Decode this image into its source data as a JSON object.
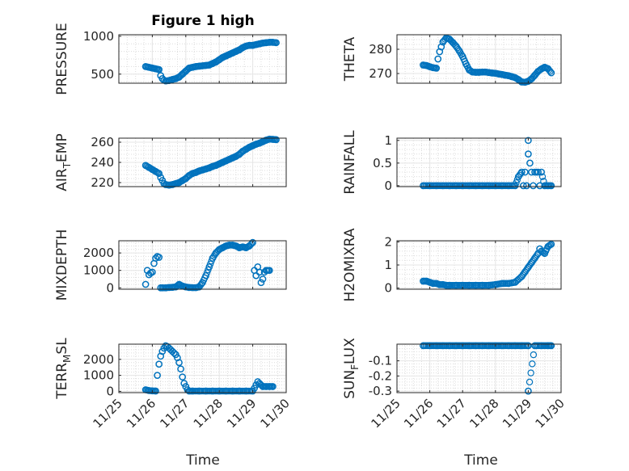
{
  "figure": {
    "title": "Figure 1 high"
  },
  "colors": {
    "marker": "#0072BD",
    "axis": "#262626",
    "grid": "#dcdcdc"
  },
  "x_axis": {
    "label": "Time",
    "ticks": [
      "11/25",
      "11/26",
      "11/27",
      "11/28",
      "11/29",
      "11/30"
    ],
    "range_days": [
      25,
      30
    ]
  },
  "chart_data": [
    {
      "type": "scatter",
      "ylabel": "PRESSURE",
      "ylim": [
        380,
        1020
      ],
      "yticks": [
        500,
        1000
      ],
      "x": [
        25.8,
        25.9,
        26.0,
        26.1,
        26.2,
        26.25,
        26.3,
        26.35,
        26.4,
        26.5,
        26.6,
        26.7,
        26.8,
        26.9,
        27.0,
        27.1,
        27.2,
        27.3,
        27.4,
        27.5,
        27.6,
        27.7,
        27.8,
        27.9,
        28.0,
        28.1,
        28.2,
        28.3,
        28.4,
        28.5,
        28.6,
        28.7,
        28.8,
        28.9,
        29.0,
        29.1,
        29.2,
        29.3,
        29.4,
        29.5,
        29.6,
        29.7
      ],
      "y": [
        600,
        590,
        580,
        570,
        560,
        480,
        440,
        420,
        410,
        415,
        430,
        440,
        460,
        500,
        540,
        580,
        590,
        600,
        605,
        610,
        615,
        620,
        640,
        660,
        690,
        720,
        740,
        760,
        780,
        800,
        820,
        850,
        870,
        880,
        880,
        890,
        900,
        910,
        915,
        920,
        920,
        915
      ]
    },
    {
      "type": "scatter",
      "ylabel": "THETA",
      "ylim": [
        266,
        286
      ],
      "yticks": [
        270,
        280
      ],
      "x": [
        25.8,
        25.9,
        26.0,
        26.1,
        26.2,
        26.25,
        26.3,
        26.35,
        26.4,
        26.5,
        26.6,
        26.7,
        26.8,
        26.9,
        27.0,
        27.1,
        27.2,
        27.3,
        27.4,
        27.5,
        27.6,
        27.7,
        27.8,
        27.9,
        28.0,
        28.1,
        28.2,
        28.3,
        28.4,
        28.5,
        28.6,
        28.7,
        28.8,
        28.9,
        29.0,
        29.1,
        29.2,
        29.3,
        29.4,
        29.5,
        29.6,
        29.7
      ],
      "y": [
        273.5,
        273.3,
        272.8,
        272.4,
        272.2,
        276,
        279,
        281,
        283,
        284.7,
        284.2,
        282.8,
        281.3,
        279.3,
        277,
        274,
        271.5,
        270.6,
        270.5,
        270.5,
        270.6,
        270.6,
        270.4,
        270.2,
        270.1,
        269.8,
        269.6,
        269.3,
        269.1,
        268.7,
        268.3,
        267.5,
        266.5,
        266.4,
        266.8,
        267.8,
        269.3,
        270.9,
        271.9,
        272.6,
        272,
        270.3
      ]
    },
    {
      "type": "scatter",
      "ylabel": "AIR_TEMP",
      "ylim": [
        216,
        264
      ],
      "yticks": [
        220,
        240,
        260
      ],
      "x": [
        25.8,
        25.9,
        26.0,
        26.1,
        26.2,
        26.25,
        26.3,
        26.35,
        26.4,
        26.5,
        26.6,
        26.7,
        26.8,
        26.9,
        27.0,
        27.1,
        27.2,
        27.3,
        27.4,
        27.5,
        27.6,
        27.7,
        27.8,
        27.9,
        28.0,
        28.1,
        28.2,
        28.3,
        28.4,
        28.5,
        28.6,
        28.7,
        28.8,
        28.9,
        29.0,
        29.1,
        29.2,
        29.3,
        29.4,
        29.5,
        29.6,
        29.7
      ],
      "y": [
        237,
        235,
        233,
        231,
        229,
        225,
        222,
        219,
        218,
        217.5,
        218,
        219,
        220,
        222,
        224,
        227,
        229,
        230,
        231.5,
        232.5,
        233.5,
        234.5,
        236,
        237,
        238.5,
        240,
        241.5,
        243,
        244.5,
        246,
        248,
        251,
        253,
        255,
        256.5,
        258,
        259,
        260.5,
        262,
        263,
        262.8,
        262.5
      ]
    },
    {
      "type": "scatter",
      "ylabel": "RAINFALL",
      "ylim": [
        -0.02,
        1.05
      ],
      "yticks": [
        0,
        0.5,
        1
      ],
      "x": [
        25.8,
        26.0,
        26.2,
        26.4,
        26.6,
        26.8,
        27.0,
        27.2,
        27.4,
        27.6,
        27.8,
        28.0,
        28.2,
        28.4,
        28.6,
        28.7,
        28.8,
        28.85,
        28.9,
        28.95,
        29.0,
        29.0,
        29.05,
        29.1,
        29.15,
        29.2,
        29.25,
        29.3,
        29.35,
        29.4,
        29.5,
        29.6,
        29.7
      ],
      "y": [
        0,
        0,
        0,
        0,
        0,
        0,
        0,
        0,
        0,
        0,
        0,
        0,
        0,
        0,
        0,
        0.2,
        0.3,
        0,
        0.3,
        0,
        1.0,
        0.7,
        0.5,
        0.3,
        0,
        0.3,
        0.3,
        0.3,
        0,
        0.3,
        0,
        0,
        0
      ]
    },
    {
      "type": "scatter",
      "ylabel": "MIXDEPTH",
      "ylim": [
        -80,
        2700
      ],
      "yticks": [
        0,
        1000,
        2000
      ],
      "x": [
        25.8,
        25.85,
        25.9,
        25.95,
        26.0,
        26.05,
        26.1,
        26.15,
        26.2,
        26.25,
        26.3,
        26.4,
        26.5,
        26.6,
        26.7,
        26.8,
        26.9,
        27.0,
        27.1,
        27.2,
        27.3,
        27.4,
        27.5,
        27.6,
        27.7,
        27.8,
        27.9,
        28.0,
        28.1,
        28.2,
        28.3,
        28.4,
        28.5,
        28.6,
        28.7,
        28.8,
        28.9,
        29.0,
        29.05,
        29.1,
        29.15,
        29.2,
        29.25,
        29.3,
        29.35,
        29.4,
        29.5
      ],
      "y": [
        200,
        1000,
        750,
        850,
        900,
        1400,
        1700,
        1800,
        1750,
        0,
        0,
        0,
        20,
        30,
        50,
        200,
        100,
        50,
        20,
        10,
        10,
        50,
        300,
        700,
        1200,
        1700,
        2000,
        2200,
        2300,
        2400,
        2450,
        2450,
        2400,
        2300,
        2350,
        2300,
        2400,
        2600,
        1000,
        700,
        1200,
        900,
        300,
        500,
        900,
        1000,
        1000
      ]
    },
    {
      "type": "scatter",
      "ylabel": "H2OMIXRA",
      "ylim": [
        -0.05,
        2.05
      ],
      "yticks": [
        0,
        1,
        2
      ],
      "x": [
        25.8,
        25.9,
        26.0,
        26.1,
        26.2,
        26.3,
        26.4,
        26.5,
        26.6,
        26.8,
        27.0,
        27.2,
        27.4,
        27.6,
        27.8,
        28.0,
        28.2,
        28.4,
        28.6,
        28.8,
        28.9,
        29.0,
        29.1,
        29.2,
        29.3,
        29.35,
        29.4,
        29.5,
        29.6,
        29.7
      ],
      "y": [
        0.3,
        0.3,
        0.25,
        0.2,
        0.2,
        0.15,
        0.15,
        0.12,
        0.12,
        0.12,
        0.12,
        0.12,
        0.12,
        0.12,
        0.12,
        0.15,
        0.2,
        0.2,
        0.25,
        0.5,
        0.7,
        0.9,
        1.1,
        1.3,
        1.5,
        1.7,
        1.6,
        1.5,
        1.8,
        1.9
      ]
    },
    {
      "type": "scatter",
      "ylabel": "TERR_MSL",
      "ylim": [
        -80,
        2950
      ],
      "yticks": [
        0,
        1000,
        2000
      ],
      "x": [
        25.8,
        25.9,
        26.0,
        26.1,
        26.15,
        26.2,
        26.25,
        26.3,
        26.35,
        26.4,
        26.45,
        26.5,
        26.55,
        26.6,
        26.65,
        26.7,
        26.75,
        26.8,
        26.85,
        26.9,
        26.95,
        27.0,
        27.05,
        27.1,
        27.2,
        27.4,
        27.6,
        27.8,
        28.0,
        28.2,
        28.4,
        28.6,
        28.8,
        29.0,
        29.05,
        29.1,
        29.15,
        29.2,
        29.3,
        29.4,
        29.5,
        29.6
      ],
      "y": [
        100,
        50,
        30,
        20,
        1000,
        1700,
        2200,
        2500,
        2700,
        2850,
        2800,
        2700,
        2600,
        2500,
        2400,
        2300,
        2100,
        1800,
        1400,
        900,
        500,
        300,
        100,
        20,
        20,
        20,
        20,
        20,
        20,
        20,
        20,
        20,
        20,
        20,
        200,
        400,
        600,
        500,
        300,
        300,
        300,
        300
      ]
    },
    {
      "type": "scatter",
      "ylabel": "SUN_FLUX",
      "ylim": [
        -0.31,
        0.01
      ],
      "yticks": [
        -0.1,
        -0.2,
        -0.3
      ],
      "x": [
        25.8,
        26.0,
        26.2,
        26.4,
        26.6,
        26.8,
        27.0,
        27.2,
        27.4,
        27.6,
        27.8,
        28.0,
        28.2,
        28.4,
        28.6,
        28.8,
        29.0,
        29.2,
        29.4,
        29.6,
        29.7,
        29.0
      ],
      "y": [
        0,
        0,
        0,
        0,
        0,
        0,
        0,
        0,
        0,
        0,
        0,
        0,
        0,
        0,
        0,
        0,
        0,
        0,
        0,
        0,
        0,
        -0.3
      ]
    }
  ],
  "layout_note_removed": true
}
